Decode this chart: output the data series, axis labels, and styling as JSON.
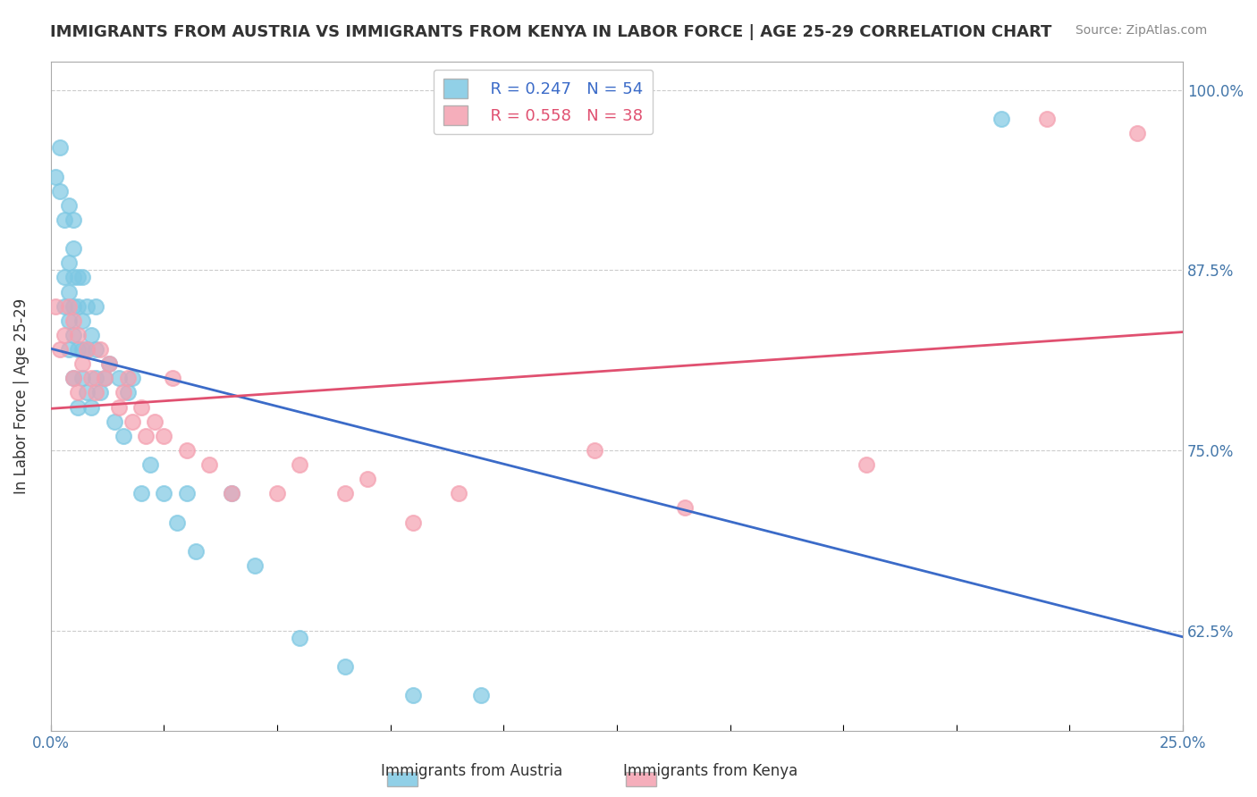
{
  "title": "IMMIGRANTS FROM AUSTRIA VS IMMIGRANTS FROM KENYA IN LABOR FORCE | AGE 25-29 CORRELATION CHART",
  "source": "Source: ZipAtlas.com",
  "ylabel": "In Labor Force | Age 25-29",
  "xlim": [
    0.0,
    0.25
  ],
  "ylim": [
    0.555,
    1.02
  ],
  "xticks": [
    0.0,
    0.025,
    0.05,
    0.075,
    0.1,
    0.125,
    0.15,
    0.175,
    0.2,
    0.225,
    0.25
  ],
  "xtick_labels": [
    "0.0%",
    "",
    "",
    "",
    "",
    "",
    "",
    "",
    "",
    "",
    "25.0%"
  ],
  "yticks": [
    0.625,
    0.75,
    0.875,
    1.0
  ],
  "ytick_labels": [
    "62.5%",
    "75.0%",
    "87.5%",
    "100.0%"
  ],
  "legend_R_austria": "R = 0.247",
  "legend_N_austria": "N = 54",
  "legend_R_kenya": "R = 0.558",
  "legend_N_kenya": "N = 38",
  "austria_color": "#7EC8E3",
  "kenya_color": "#F4A0B0",
  "austria_line_color": "#3B6BC8",
  "kenya_line_color": "#E05070",
  "background_color": "#ffffff",
  "austria_x": [
    0.001,
    0.002,
    0.002,
    0.003,
    0.003,
    0.003,
    0.004,
    0.004,
    0.004,
    0.004,
    0.004,
    0.005,
    0.005,
    0.005,
    0.005,
    0.005,
    0.005,
    0.006,
    0.006,
    0.006,
    0.006,
    0.007,
    0.007,
    0.007,
    0.007,
    0.008,
    0.008,
    0.008,
    0.009,
    0.009,
    0.01,
    0.01,
    0.01,
    0.011,
    0.012,
    0.013,
    0.014,
    0.015,
    0.016,
    0.017,
    0.018,
    0.02,
    0.022,
    0.025,
    0.028,
    0.03,
    0.032,
    0.04,
    0.045,
    0.055,
    0.065,
    0.08,
    0.095,
    0.21
  ],
  "austria_y": [
    0.94,
    0.93,
    0.96,
    0.85,
    0.87,
    0.91,
    0.82,
    0.84,
    0.86,
    0.88,
    0.92,
    0.8,
    0.83,
    0.85,
    0.87,
    0.89,
    0.91,
    0.78,
    0.82,
    0.85,
    0.87,
    0.8,
    0.82,
    0.84,
    0.87,
    0.79,
    0.82,
    0.85,
    0.78,
    0.83,
    0.8,
    0.82,
    0.85,
    0.79,
    0.8,
    0.81,
    0.77,
    0.8,
    0.76,
    0.79,
    0.8,
    0.72,
    0.74,
    0.72,
    0.7,
    0.72,
    0.68,
    0.72,
    0.67,
    0.62,
    0.6,
    0.58,
    0.58,
    0.98
  ],
  "kenya_x": [
    0.001,
    0.002,
    0.003,
    0.004,
    0.005,
    0.005,
    0.006,
    0.006,
    0.007,
    0.008,
    0.009,
    0.01,
    0.011,
    0.012,
    0.013,
    0.015,
    0.016,
    0.017,
    0.018,
    0.02,
    0.021,
    0.023,
    0.025,
    0.027,
    0.03,
    0.035,
    0.04,
    0.05,
    0.055,
    0.065,
    0.07,
    0.08,
    0.09,
    0.12,
    0.14,
    0.18,
    0.22,
    0.24
  ],
  "kenya_y": [
    0.85,
    0.82,
    0.83,
    0.85,
    0.8,
    0.84,
    0.79,
    0.83,
    0.81,
    0.82,
    0.8,
    0.79,
    0.82,
    0.8,
    0.81,
    0.78,
    0.79,
    0.8,
    0.77,
    0.78,
    0.76,
    0.77,
    0.76,
    0.8,
    0.75,
    0.74,
    0.72,
    0.72,
    0.74,
    0.72,
    0.73,
    0.7,
    0.72,
    0.75,
    0.71,
    0.74,
    0.98,
    0.97
  ]
}
